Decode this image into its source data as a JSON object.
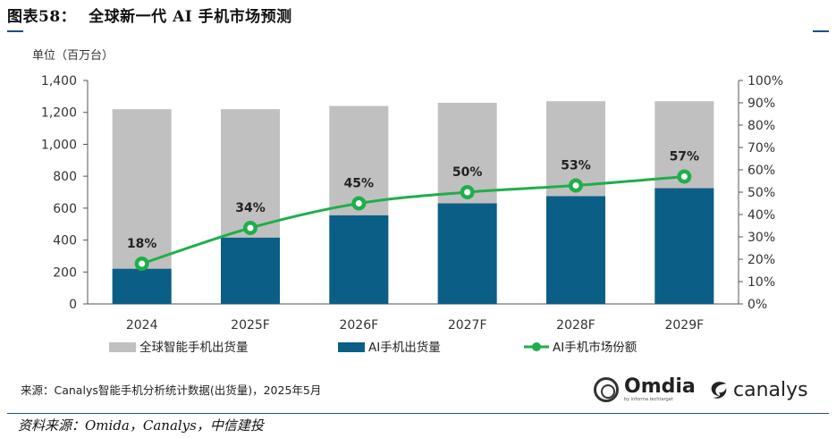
{
  "figure": {
    "number": "图表58：",
    "title": "全球新一代 AI 手机市场预测"
  },
  "chart_data": {
    "type": "bar",
    "unit_label": "单位（百万台）",
    "categories": [
      "2024",
      "2025F",
      "2026F",
      "2027F",
      "2028F",
      "2029F"
    ],
    "series": [
      {
        "name": "全球智能手机出货量",
        "type": "bar",
        "axis": "left",
        "color": "#c0c0c0",
        "values": [
          1220,
          1220,
          1240,
          1260,
          1270,
          1270
        ]
      },
      {
        "name": "AI手机出货量",
        "type": "bar",
        "axis": "left",
        "color": "#0b5f86",
        "values": [
          220,
          415,
          555,
          630,
          675,
          725
        ]
      },
      {
        "name": "AI手机市场份额",
        "type": "line",
        "axis": "right",
        "color": "#1fae4b",
        "values": [
          18,
          34,
          45,
          50,
          53,
          57
        ],
        "labels": [
          "18%",
          "34%",
          "45%",
          "50%",
          "53%",
          "57%"
        ]
      }
    ],
    "y_left": {
      "ylim": [
        0,
        1400
      ],
      "ticks": [
        0,
        200,
        400,
        600,
        800,
        1000,
        1200,
        1400
      ],
      "tick_labels": [
        "0",
        "200",
        "400",
        "600",
        "800",
        "1,000",
        "1,200",
        "1,400"
      ]
    },
    "y_right": {
      "ylim": [
        0,
        100
      ],
      "ticks": [
        0,
        10,
        20,
        30,
        40,
        50,
        60,
        70,
        80,
        90,
        100
      ],
      "tick_labels": [
        "0%",
        "10%",
        "20%",
        "30%",
        "40%",
        "50%",
        "60%",
        "70%",
        "80%",
        "90%",
        "100%"
      ]
    },
    "legend_position": "bottom",
    "grid": false
  },
  "source_note": "来源：Canalys智能手机分析统计数据(出货量)，2025年5月",
  "logos": {
    "omdia": {
      "name": "Omdia",
      "sub": "by informa techtarget"
    },
    "canalys": {
      "name": "canalys"
    }
  },
  "footer": "资料来源：Omida，Canalys，中信建投"
}
